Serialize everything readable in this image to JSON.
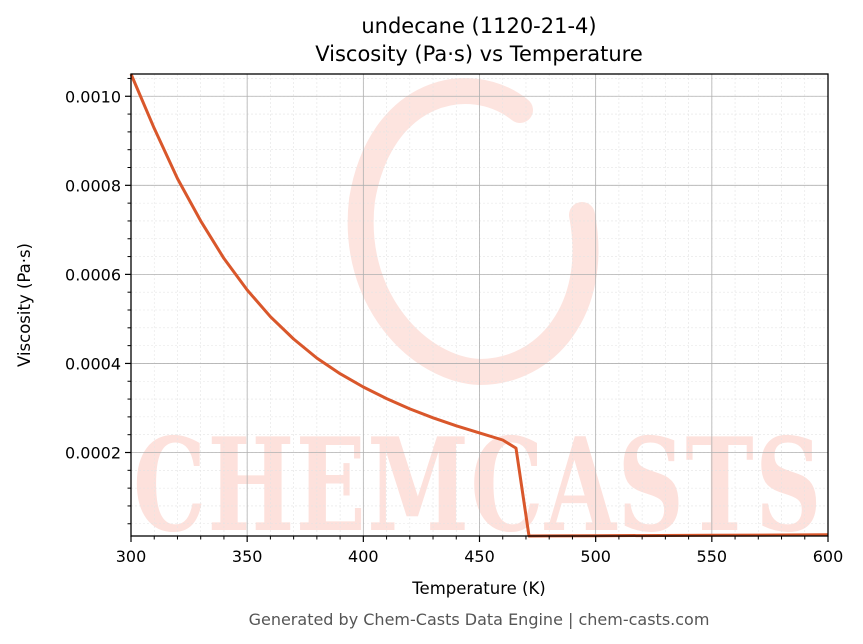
{
  "chart_data": {
    "type": "line",
    "title": "undecane (1120-21-4)",
    "subtitle": "Viscosity (Pa·s) vs Temperature",
    "xlabel": "Temperature (K)",
    "ylabel": "Viscosity (Pa·s)",
    "xlim": [
      300,
      600
    ],
    "ylim": [
      1.25e-05,
      0.00105
    ],
    "xticks": [
      300,
      350,
      400,
      450,
      500,
      550,
      600
    ],
    "xtick_labels": [
      "300",
      "350",
      "400",
      "450",
      "500",
      "550",
      "600"
    ],
    "yticks": [
      0.0002,
      0.0004,
      0.0006,
      0.0008,
      0.001
    ],
    "ytick_labels": [
      "0.0002",
      "0.0004",
      "0.0006",
      "0.0008",
      "0.0010"
    ],
    "grid": true,
    "line_color": "#d9572b",
    "series": [
      {
        "x": [
          300,
          310,
          320,
          330,
          340,
          350,
          360,
          370,
          380,
          390,
          400,
          410,
          420,
          430,
          440,
          450,
          460,
          465.7,
          471.3,
          480,
          500,
          550,
          600
        ],
        "y": [
          0.00105,
          0.000928,
          0.000815,
          0.00072,
          0.000636,
          0.000565,
          0.000505,
          0.000455,
          0.000412,
          0.000377,
          0.000347,
          0.000321,
          0.000298,
          0.000278,
          0.00026,
          0.000244,
          0.000228,
          0.00021,
          1.25e-05,
          1.27e-05,
          1.31e-05,
          1.41e-05,
          1.51e-05
        ]
      }
    ]
  },
  "watermark": {
    "text": "CHEMCASTS",
    "color": "#fde1dc"
  },
  "footer": "Generated by Chem-Casts Data Engine | chem-casts.com"
}
